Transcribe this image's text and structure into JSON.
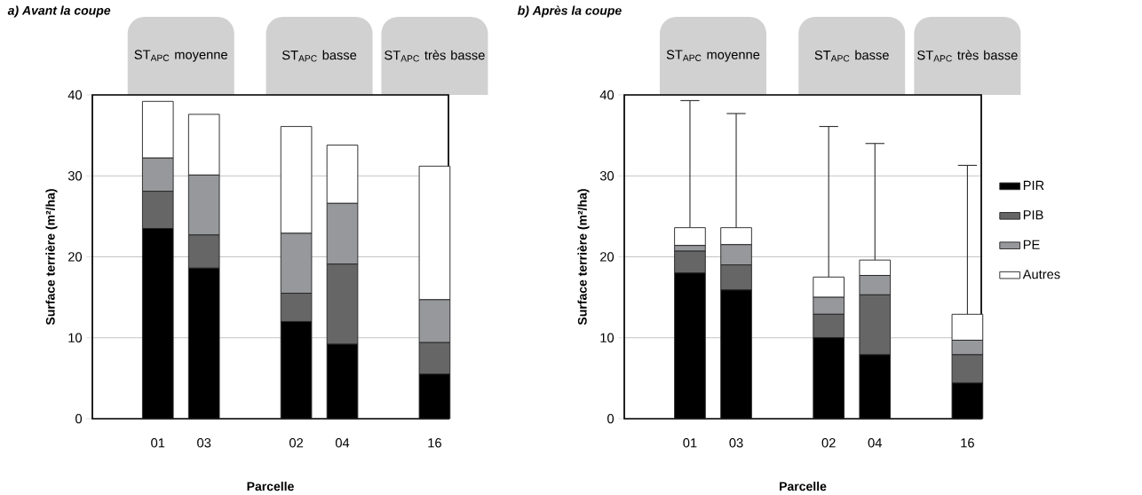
{
  "chart_data": [
    {
      "type": "bar",
      "stacked": true,
      "title": "a) Avant la coupe",
      "xlabel": "Parcelle",
      "ylabel": "Surface terrière (m²/ha)",
      "categories": [
        "01",
        "03",
        null,
        "02",
        "04",
        null,
        "16"
      ],
      "annotations": [
        "ST$_{APC}$ moyenne",
        "ST$_{APC}$ basse",
        "ST$_{APC}$ très basse"
      ],
      "series": [
        {
          "color": "#000000",
          "values": [
            23.5,
            18.6,
            null,
            12.0,
            9.2,
            null,
            5.5
          ]
        },
        {
          "color": "#666666",
          "values": [
            4.6,
            4.1,
            null,
            3.5,
            9.9,
            null,
            3.9
          ]
        },
        {
          "color": "#97989b",
          "values": [
            4.1,
            7.4,
            null,
            7.4,
            7.5,
            null,
            5.3
          ]
        },
        {
          "color": "#ffffff",
          "values": [
            7.0,
            7.5,
            null,
            13.2,
            7.2,
            null,
            16.5
          ]
        }
      ],
      "ylim": [
        0,
        40
      ],
      "yticks": [
        0,
        10,
        20,
        30,
        40
      ],
      "grid": "y"
    },
    {
      "type": "bar",
      "stacked": true,
      "title": "b) Après la coupe",
      "xlabel": "Parcelle",
      "ylabel": "Surface terrière (m²/ha)",
      "categories": [
        "01",
        "03",
        null,
        "02",
        "04",
        null,
        "16"
      ],
      "annotations": [
        "ST$_{APC}$ moyenne",
        "ST$_{APC}$ basse",
        "ST$_{APC}$ très basse"
      ],
      "series": [
        {
          "name": "PIR",
          "color": "#000000",
          "values": [
            18.0,
            15.9,
            null,
            10.0,
            7.9,
            null,
            4.4
          ]
        },
        {
          "name": "PIB",
          "color": "#666666",
          "values": [
            2.7,
            3.1,
            null,
            2.9,
            7.4,
            null,
            3.5
          ]
        },
        {
          "name": "PE",
          "color": "#97989b",
          "values": [
            0.7,
            2.5,
            null,
            2.1,
            2.4,
            null,
            1.8
          ]
        },
        {
          "name": "Autres",
          "color": "#ffffff",
          "values": [
            2.2,
            2.1,
            null,
            2.5,
            1.9,
            null,
            3.2
          ],
          "errors": [
            [
              23.6,
              39.3
            ],
            [
              23.6,
              37.7
            ],
            null,
            [
              17.5,
              36.1
            ],
            [
              19.6,
              34.0
            ],
            null,
            [
              12.9,
              31.3
            ]
          ]
        }
      ],
      "ylim": [
        0,
        40
      ],
      "yticks": [
        0,
        10,
        20,
        30,
        40
      ],
      "grid": "y",
      "legend": "right"
    }
  ]
}
